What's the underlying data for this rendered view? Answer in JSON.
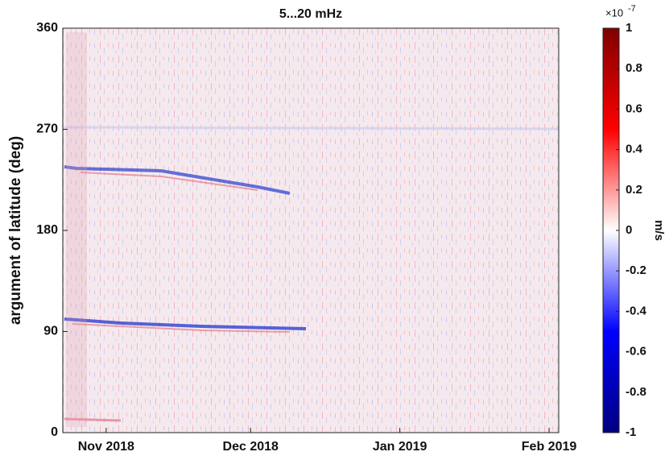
{
  "chart_data": {
    "type": "heatmap",
    "title": "5...20 mHz",
    "y_label": "argument of latitude (deg)",
    "ylim": [
      0,
      360
    ],
    "yticks": [
      0,
      90,
      180,
      270,
      360
    ],
    "xlim": [
      "2018-10-23",
      "2019-02-03"
    ],
    "xticks": [
      {
        "value": "2018-11-01",
        "label": "Nov 2018"
      },
      {
        "value": "2018-12-01",
        "label": "Dec 2018"
      },
      {
        "value": "2019-01-01",
        "label": "Jan 2019"
      },
      {
        "value": "2019-02-01",
        "label": "Feb 2019"
      }
    ],
    "colorbar": {
      "label": "m/s",
      "exponent_base": "×10",
      "exponent_power": "-7",
      "lim": [
        -1,
        1
      ],
      "ticks": [
        -1,
        -0.8,
        -0.6,
        -0.4,
        -0.2,
        0,
        0.2,
        0.4,
        0.6,
        0.8,
        1
      ],
      "colors": [
        "#00007f",
        "#0000ff",
        "#ffffff",
        "#ff0000",
        "#7f0000"
      ]
    }
  }
}
